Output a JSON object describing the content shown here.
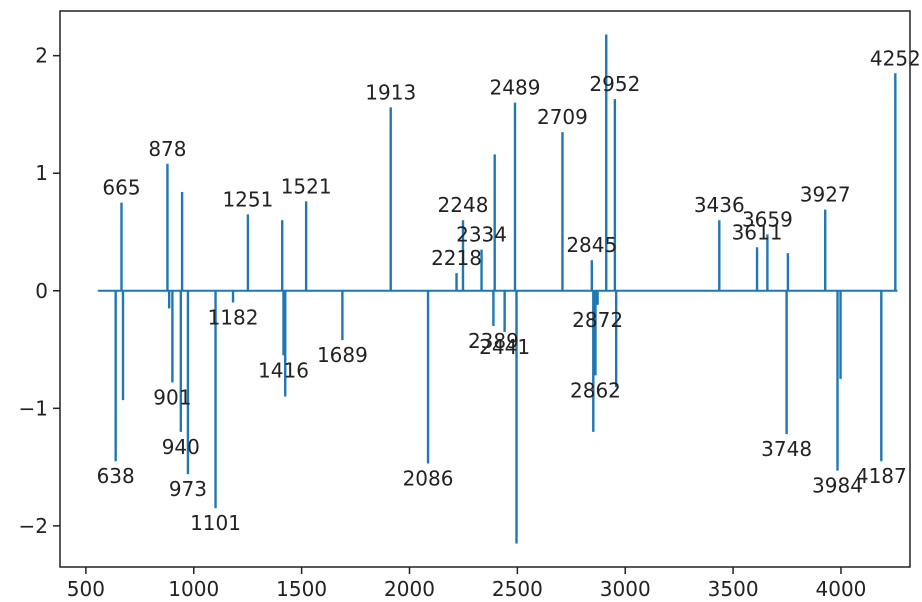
{
  "chart_data": {
    "type": "stem",
    "title": "",
    "xlabel": "",
    "ylabel": "",
    "xlim": [
      380,
      4320
    ],
    "ylim": [
      -2.35,
      2.38
    ],
    "xticks": [
      500,
      1000,
      1500,
      2000,
      2500,
      3000,
      3500,
      4000
    ],
    "yticks": [
      -2,
      -1,
      0,
      1,
      2
    ],
    "baseline": {
      "from": 555,
      "to": 4262,
      "y": 0
    },
    "line_color": "#1f77b4",
    "grid": false,
    "legend": "none",
    "peaks": [
      {
        "x": 638,
        "y": -1.45,
        "label": "638"
      },
      {
        "x": 665,
        "y": 0.75,
        "label": "665"
      },
      {
        "x": 672,
        "y": -0.93,
        "label": ""
      },
      {
        "x": 878,
        "y": 1.08,
        "label": "878"
      },
      {
        "x": 886,
        "y": -0.15,
        "label": ""
      },
      {
        "x": 901,
        "y": -0.78,
        "label": "901"
      },
      {
        "x": 940,
        "y": -1.2,
        "label": "940"
      },
      {
        "x": 946,
        "y": 0.84,
        "label": ""
      },
      {
        "x": 973,
        "y": -1.56,
        "label": "973"
      },
      {
        "x": 1101,
        "y": -1.85,
        "label": "1101"
      },
      {
        "x": 1182,
        "y": -0.1,
        "label": "1182"
      },
      {
        "x": 1251,
        "y": 0.65,
        "label": "1251"
      },
      {
        "x": 1410,
        "y": 0.6,
        "label": ""
      },
      {
        "x": 1416,
        "y": -0.55,
        "label": "1416"
      },
      {
        "x": 1424,
        "y": -0.9,
        "label": ""
      },
      {
        "x": 1521,
        "y": 0.76,
        "label": "1521"
      },
      {
        "x": 1689,
        "y": -0.42,
        "label": "1689"
      },
      {
        "x": 1913,
        "y": 1.56,
        "label": "1913"
      },
      {
        "x": 2086,
        "y": -1.47,
        "label": "2086"
      },
      {
        "x": 2218,
        "y": 0.15,
        "label": "2218"
      },
      {
        "x": 2248,
        "y": 0.6,
        "label": "2248"
      },
      {
        "x": 2334,
        "y": 0.35,
        "label": "2334"
      },
      {
        "x": 2389,
        "y": -0.3,
        "label": "2389"
      },
      {
        "x": 2395,
        "y": 1.16,
        "label": ""
      },
      {
        "x": 2441,
        "y": -0.35,
        "label": "2441"
      },
      {
        "x": 2489,
        "y": 1.6,
        "label": "2489"
      },
      {
        "x": 2496,
        "y": -2.15,
        "label": ""
      },
      {
        "x": 2709,
        "y": 1.35,
        "label": "2709"
      },
      {
        "x": 2845,
        "y": 0.26,
        "label": "2845"
      },
      {
        "x": 2852,
        "y": -1.2,
        "label": ""
      },
      {
        "x": 2862,
        "y": -0.72,
        "label": "2862"
      },
      {
        "x": 2872,
        "y": -0.12,
        "label": "2872"
      },
      {
        "x": 2912,
        "y": 2.18,
        "label": ""
      },
      {
        "x": 2952,
        "y": 1.63,
        "label": "2952"
      },
      {
        "x": 2958,
        "y": -0.82,
        "label": ""
      },
      {
        "x": 3436,
        "y": 0.6,
        "label": "3436"
      },
      {
        "x": 3611,
        "y": 0.37,
        "label": "3611"
      },
      {
        "x": 3659,
        "y": 0.48,
        "label": "3659"
      },
      {
        "x": 3748,
        "y": -1.22,
        "label": "3748"
      },
      {
        "x": 3754,
        "y": 0.32,
        "label": ""
      },
      {
        "x": 3927,
        "y": 0.69,
        "label": "3927"
      },
      {
        "x": 3984,
        "y": -1.53,
        "label": "3984"
      },
      {
        "x": 3998,
        "y": -0.75,
        "label": ""
      },
      {
        "x": 4187,
        "y": -1.45,
        "label": "4187"
      },
      {
        "x": 4252,
        "y": 1.85,
        "label": "4252"
      }
    ]
  }
}
